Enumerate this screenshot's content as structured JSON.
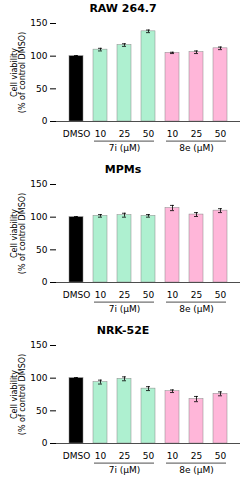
{
  "chart_data": [
    {
      "type": "bar",
      "title": "RAW 264.7",
      "categories": [
        "DMSO",
        "10",
        "25",
        "50",
        "10",
        "25",
        "50"
      ],
      "values": [
        100,
        110,
        117,
        138,
        105,
        106,
        112
      ],
      "errors": [
        1,
        2,
        2,
        2,
        1,
        2,
        2
      ],
      "colors": [
        "#000000",
        "#aef0d0",
        "#aef0d0",
        "#aef0d0",
        "#ffb6d9",
        "#ffb6d9",
        "#ffb6d9"
      ],
      "ylim": [
        0,
        150
      ],
      "yticks": [
        0,
        50,
        100,
        150
      ],
      "ylabel": "Cell viability\n(% of control DMSO)",
      "annotations": [
        "7i (μM)",
        "8e (μM)"
      ]
    },
    {
      "type": "bar",
      "title": "MPMs",
      "categories": [
        "DMSO",
        "10",
        "25",
        "50",
        "10",
        "25",
        "50"
      ],
      "values": [
        100,
        102,
        103,
        102,
        114,
        104,
        110
      ],
      "errors": [
        1,
        2,
        3,
        2,
        4,
        3,
        3
      ],
      "colors": [
        "#000000",
        "#aef0d0",
        "#aef0d0",
        "#aef0d0",
        "#ffb6d9",
        "#ffb6d9",
        "#ffb6d9"
      ],
      "ylim": [
        0,
        150
      ],
      "yticks": [
        0,
        50,
        100,
        150
      ],
      "ylabel": "Cell viability\n(% of control DMSO)",
      "annotations": [
        "7i (μM)",
        "8e (μM)"
      ]
    },
    {
      "type": "bar",
      "title": "NRK-52E",
      "categories": [
        "DMSO",
        "10",
        "25",
        "50",
        "10",
        "25",
        "50"
      ],
      "values": [
        100,
        94,
        99,
        84,
        80,
        68,
        76
      ],
      "errors": [
        1,
        3,
        3,
        3,
        2,
        4,
        3
      ],
      "colors": [
        "#000000",
        "#aef0d0",
        "#aef0d0",
        "#aef0d0",
        "#ffb6d9",
        "#ffb6d9",
        "#ffb6d9"
      ],
      "ylim": [
        0,
        150
      ],
      "yticks": [
        0,
        50,
        100,
        150
      ],
      "ylabel": "Cell viability\n(% of control DMSO)",
      "annotations": [
        "7i (μM)",
        "8e (μM)"
      ]
    }
  ]
}
